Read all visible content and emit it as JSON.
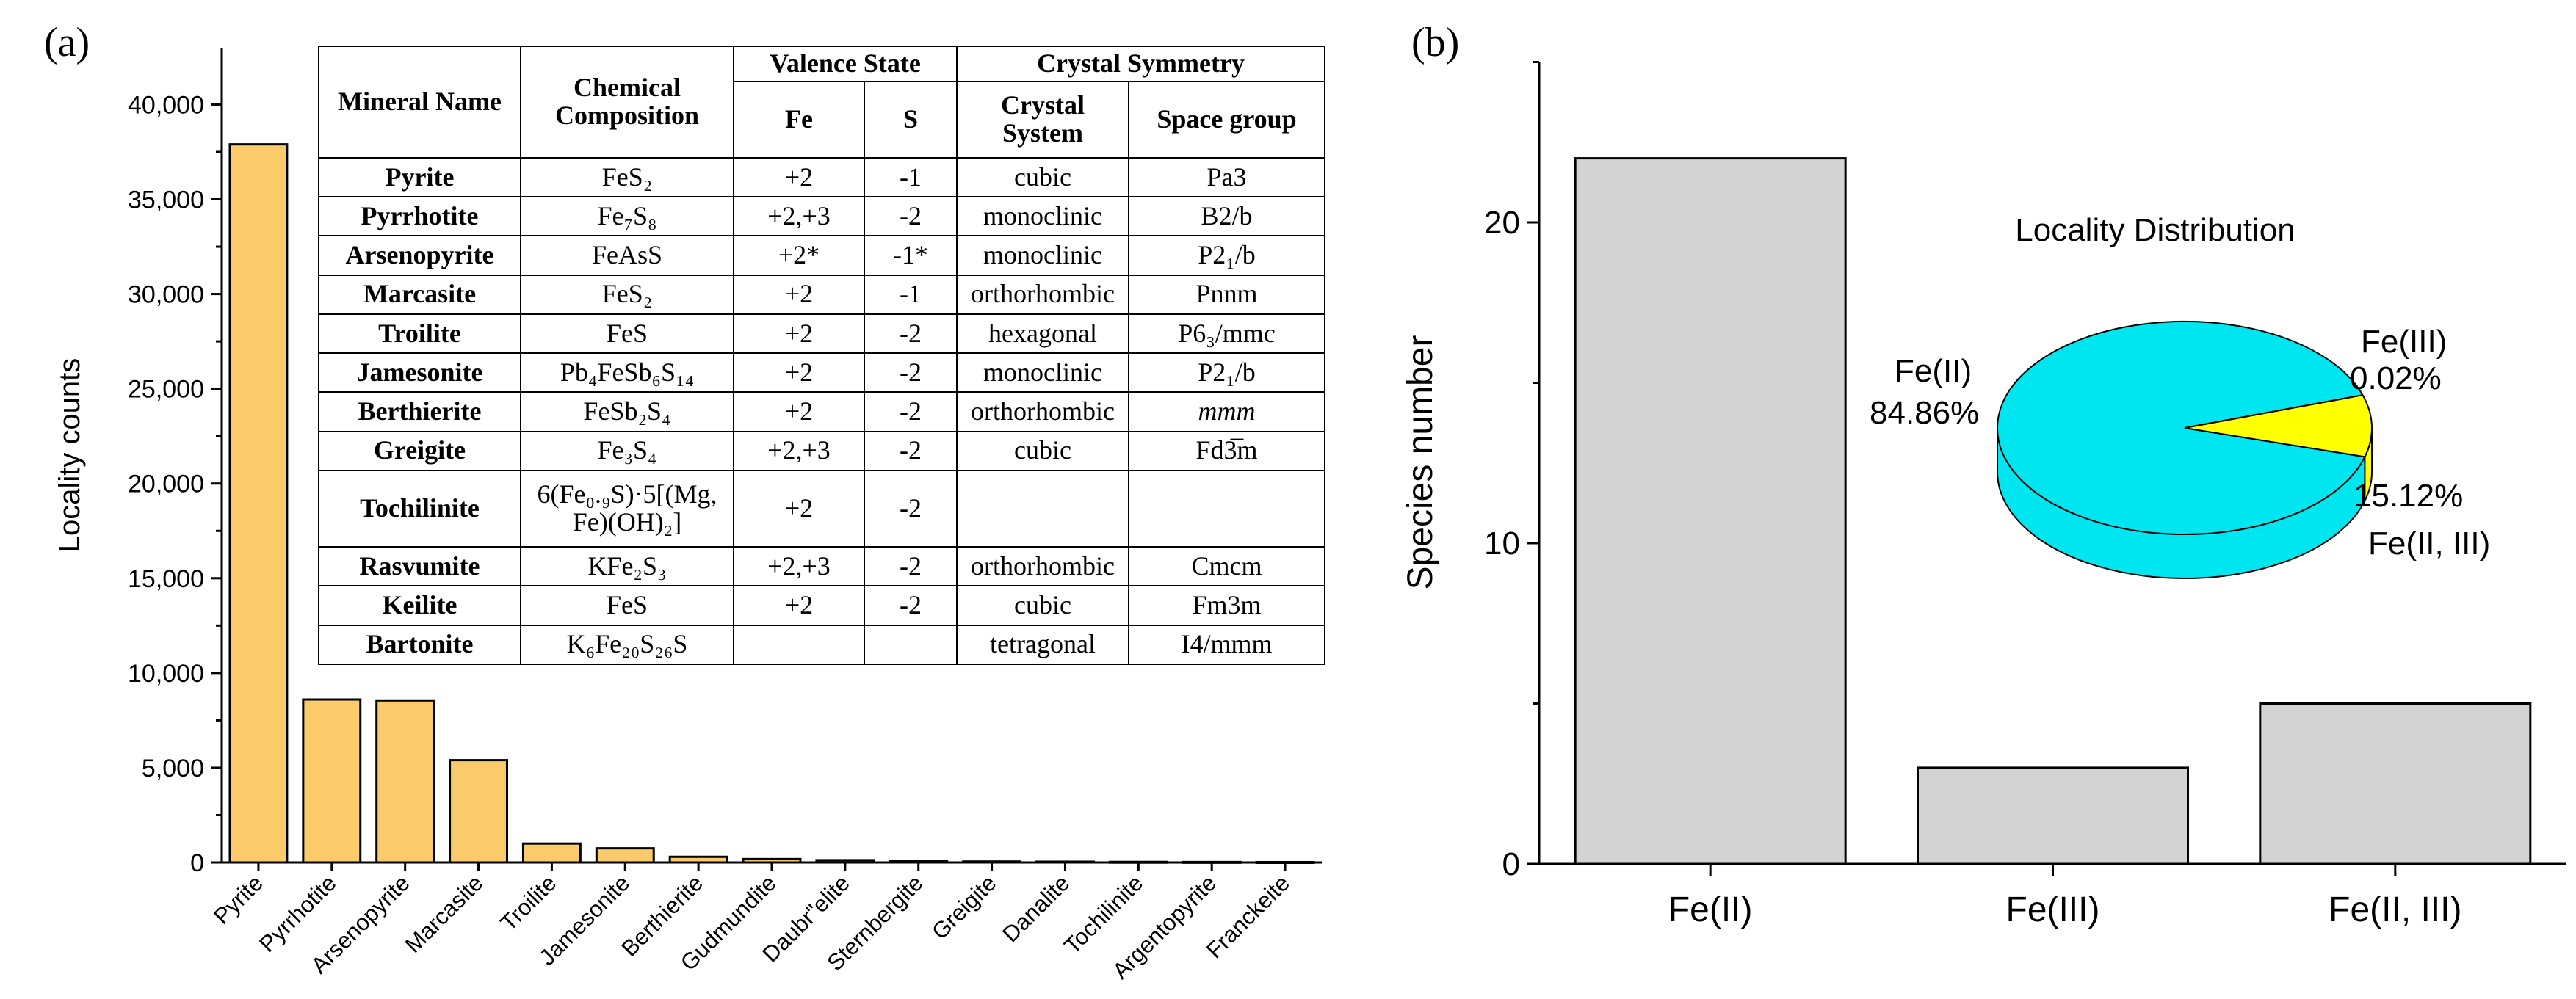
{
  "panel_a_label": "(a)",
  "panel_b_label": "(b)",
  "chart_data": [
    {
      "type": "bar",
      "title": "",
      "xlabel": "",
      "ylabel": "Locality counts",
      "ylim": [
        0,
        43000
      ],
      "yticks": [
        0,
        5000,
        10000,
        15000,
        20000,
        25000,
        30000,
        35000,
        40000
      ],
      "ytick_labels": [
        "0",
        "5,000",
        "10,000",
        "15,000",
        "20,000",
        "25,000",
        "30,000",
        "35,000",
        "40,000"
      ],
      "categories": [
        "Pyrite",
        "Pyrrhotite",
        "Arsenopyrite",
        "Marcasite",
        "Troilite",
        "Jamesonite",
        "Berthierite",
        "Gudmundite",
        "Daubréelite",
        "Sternbergite",
        "Greigite",
        "Danalite",
        "Tochilinite",
        "Argentopyrite",
        "Franckeite"
      ],
      "category_labels": [
        "Pyrite",
        "Pyrrhotite",
        "Arsenopyrite",
        "Marcasite",
        "Troilite",
        "Jamesonite",
        "Berthierite",
        "Gudmundite",
        "Daubr\"elite",
        "Sternbergite",
        "Greigite",
        "Danalite",
        "Tochilinite",
        "Argentopyrite",
        "Franckeite"
      ],
      "values": [
        37900,
        8600,
        8550,
        5400,
        1000,
        750,
        300,
        180,
        120,
        60,
        50,
        40,
        30,
        25,
        20
      ],
      "bar_color": "#fbca6a"
    },
    {
      "type": "bar",
      "title": "",
      "xlabel": "",
      "ylabel": "Species number",
      "ylim": [
        0,
        25
      ],
      "yticks": [
        0,
        10,
        20
      ],
      "ytick_labels": [
        "0",
        "10",
        "20"
      ],
      "categories": [
        "Fe(II)",
        "Fe(III)",
        "Fe(II, III)"
      ],
      "values": [
        22,
        3,
        5
      ],
      "bar_color": "#d3d3d3"
    },
    {
      "type": "pie",
      "title": "Locality Distribution",
      "slices": [
        {
          "label": "Fe(II)",
          "value": 84.86,
          "value_label": "84.86%",
          "color": "#00e6f0"
        },
        {
          "label": "Fe(III)",
          "value": 0.02,
          "value_label": "0.02%",
          "color": "#ffffff"
        },
        {
          "label": "Fe(II, III)",
          "value": 15.12,
          "value_label": "15.12%",
          "color": "#ffff00"
        }
      ]
    }
  ],
  "table": {
    "headers": {
      "mineral_name": "Mineral Name",
      "chemical_composition": "Chemical Composition",
      "valence_state": "Valence State",
      "fe": "Fe",
      "s": "S",
      "crystal_symmetry": "Crystal Symmetry",
      "crystal_system": "Crystal System",
      "space_group": "Space group"
    },
    "rows": [
      {
        "name": "Pyrite",
        "formula": "FeS₂",
        "fe": "+2",
        "s": "-1",
        "system": "cubic",
        "group": "Pa3"
      },
      {
        "name": "Pyrrhotite",
        "formula": "Fe₇S₈",
        "fe": "+2,+3",
        "s": "-2",
        "system": "monoclinic",
        "group": "B2/b"
      },
      {
        "name": "Arsenopyrite",
        "formula": "FeAsS",
        "fe": "+2*",
        "s": "-1*",
        "system": "monoclinic",
        "group": "P2₁/b"
      },
      {
        "name": "Marcasite",
        "formula": "FeS₂",
        "fe": "+2",
        "s": "-1",
        "system": "orthorhombic",
        "group": "Pnnm"
      },
      {
        "name": "Troilite",
        "formula": "FeS",
        "fe": "+2",
        "s": "-2",
        "system": "hexagonal",
        "group": "P6₃/mmc"
      },
      {
        "name": "Jamesonite",
        "formula": "Pb₄FeSb₆S₁₄",
        "fe": "+2",
        "s": "-2",
        "system": "monoclinic",
        "group": "P2₁/b"
      },
      {
        "name": "Berthierite",
        "formula": "FeSb₂S₄",
        "fe": "+2",
        "s": "-2",
        "system": "orthorhombic",
        "group": "mmm"
      },
      {
        "name": "Greigite",
        "formula": "Fe₃S₄",
        "fe": "+2,+3",
        "s": "-2",
        "system": "cubic",
        "group": "Fd3̅m"
      },
      {
        "name": "Tochilinite",
        "formula": "6(Fe₀.₉S)·5[(Mg, Fe)(OH)₂]",
        "fe": "+2",
        "s": "-2",
        "system": "",
        "group": ""
      },
      {
        "name": "Rasvumite",
        "formula": "KFe₂S₃",
        "fe": "+2,+3",
        "s": "-2",
        "system": "orthorhombic",
        "group": "Cmcm"
      },
      {
        "name": "Keilite",
        "formula": "FeS",
        "fe": "+2",
        "s": "-2",
        "system": "cubic",
        "group": "Fm3m"
      },
      {
        "name": "Bartonite",
        "formula": "K₆Fe₂₀S₂₆S",
        "fe": "",
        "s": "",
        "system": "tetragonal",
        "group": "I4/mmm"
      }
    ]
  }
}
